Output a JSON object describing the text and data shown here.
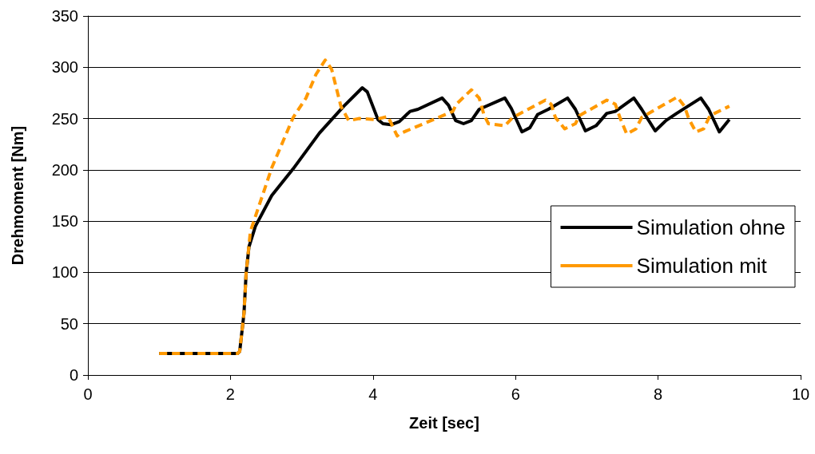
{
  "chart_data": {
    "type": "line",
    "xlabel": "Zeit [sec]",
    "ylabel": "Drehmoment [Nm]",
    "xlim": [
      0,
      10
    ],
    "xticks": [
      0,
      2,
      4,
      6,
      8,
      10
    ],
    "ylim": [
      0,
      350
    ],
    "yticks": [
      0,
      50,
      100,
      150,
      200,
      250,
      300,
      350
    ],
    "grid": "y",
    "legend": "right",
    "marker": "none",
    "series": [
      {
        "name": "Simulation ohne",
        "color": "#000000",
        "line_style": "solid",
        "x": [
          1,
          2.1,
          2.13,
          2.19,
          2.22,
          2.26,
          2.35,
          2.58,
          2.88,
          3.25,
          3.59,
          3.85,
          3.92,
          4.07,
          4.14,
          4.25,
          4.37,
          4.52,
          4.63,
          4.97,
          5.06,
          5.16,
          5.27,
          5.38,
          5.49,
          5.85,
          5.94,
          6.09,
          6.2,
          6.31,
          6.46,
          6.73,
          6.84,
          6.98,
          7.13,
          7.28,
          7.4,
          7.66,
          7.77,
          7.96,
          8.11,
          8.26,
          8.6,
          8.71,
          8.86,
          9.0
        ],
        "values": [
          21,
          21,
          23,
          60,
          99,
          125,
          145,
          175,
          201,
          236,
          262,
          280,
          276,
          249,
          245,
          244,
          247,
          257,
          259,
          270,
          263,
          248,
          245,
          248,
          259,
          270,
          260,
          237,
          241,
          254,
          259,
          270,
          259,
          238,
          243,
          255,
          257,
          270,
          259,
          238,
          248,
          255,
          270,
          259,
          237,
          249
        ]
      },
      {
        "name": "Simulation mit",
        "color": "#ff9900",
        "line_style": "dashed",
        "x": [
          1,
          2.1,
          2.13,
          2.19,
          2.22,
          2.28,
          2.58,
          2.88,
          3.06,
          3.2,
          3.33,
          3.42,
          3.55,
          3.66,
          3.81,
          4.03,
          4.21,
          4.34,
          4.37,
          5.12,
          5.17,
          5.38,
          5.49,
          5.56,
          5.62,
          5.85,
          5.96,
          6.42,
          6.5,
          6.56,
          6.69,
          6.84,
          6.9,
          7.28,
          7.4,
          7.47,
          7.56,
          7.69,
          7.77,
          8.27,
          8.37,
          8.43,
          8.53,
          8.64,
          8.73,
          9.0
        ],
        "values": [
          21,
          21,
          23,
          60,
          99,
          140,
          202,
          251,
          270,
          293,
          307,
          298,
          262,
          248,
          250,
          249,
          252,
          233,
          235,
          257,
          264,
          278,
          270,
          253,
          245,
          243,
          251,
          268,
          264,
          251,
          240,
          245,
          253,
          268,
          264,
          250,
          235,
          240,
          251,
          271,
          262,
          250,
          237,
          240,
          253,
          262
        ]
      }
    ]
  }
}
